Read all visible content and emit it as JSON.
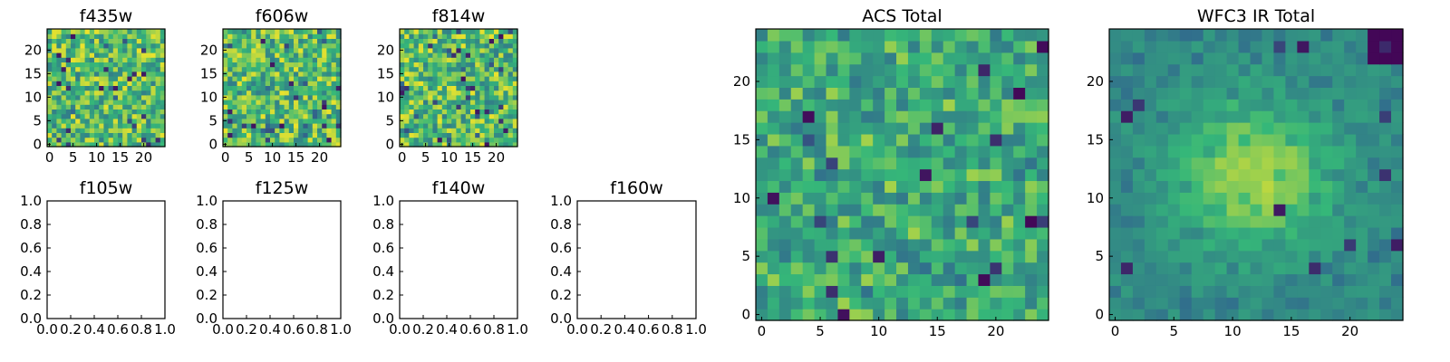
{
  "colormap": [
    "#440154",
    "#31688e",
    "#35b779",
    "#fde725"
  ],
  "chart_data": [
    {
      "type": "heatmap",
      "title": "f435w",
      "x_ticks": [
        "0",
        "5",
        "10",
        "15",
        "20"
      ],
      "y_ticks": [
        "0",
        "5",
        "10",
        "15",
        "20"
      ],
      "shape": [
        25,
        25
      ],
      "value_range": [
        0,
        1
      ]
    },
    {
      "type": "heatmap",
      "title": "f606w",
      "x_ticks": [
        "0",
        "5",
        "10",
        "15",
        "20"
      ],
      "y_ticks": [
        "0",
        "5",
        "10",
        "15",
        "20"
      ],
      "shape": [
        25,
        25
      ],
      "value_range": [
        0,
        1
      ]
    },
    {
      "type": "heatmap",
      "title": "f814w",
      "x_ticks": [
        "0",
        "5",
        "10",
        "15",
        "20"
      ],
      "y_ticks": [
        "0",
        "5",
        "10",
        "15",
        "20"
      ],
      "shape": [
        25,
        25
      ],
      "value_range": [
        0,
        1
      ]
    },
    {
      "type": "empty",
      "title": "f105w",
      "x_ticks": [
        "0.0",
        "0.2",
        "0.4",
        "0.6",
        "0.8",
        "1.0"
      ],
      "y_ticks": [
        "0.0",
        "0.2",
        "0.4",
        "0.6",
        "0.8",
        "1.0"
      ],
      "xlim": [
        0,
        1
      ],
      "ylim": [
        0,
        1
      ]
    },
    {
      "type": "empty",
      "title": "f125w",
      "x_ticks": [
        "0.0",
        "0.2",
        "0.4",
        "0.6",
        "0.8",
        "1.0"
      ],
      "y_ticks": [
        "0.0",
        "0.2",
        "0.4",
        "0.6",
        "0.8",
        "1.0"
      ],
      "xlim": [
        0,
        1
      ],
      "ylim": [
        0,
        1
      ]
    },
    {
      "type": "empty",
      "title": "f140w",
      "x_ticks": [
        "0.0",
        "0.2",
        "0.4",
        "0.6",
        "0.8",
        "1.0"
      ],
      "y_ticks": [
        "0.0",
        "0.2",
        "0.4",
        "0.6",
        "0.8",
        "1.0"
      ],
      "xlim": [
        0,
        1
      ],
      "ylim": [
        0,
        1
      ]
    },
    {
      "type": "empty",
      "title": "f160w",
      "x_ticks": [
        "0.0",
        "0.2",
        "0.4",
        "0.6",
        "0.8",
        "1.0"
      ],
      "y_ticks": [
        "0.0",
        "0.2",
        "0.4",
        "0.6",
        "0.8",
        "1.0"
      ],
      "xlim": [
        0,
        1
      ],
      "ylim": [
        0,
        1
      ]
    },
    {
      "type": "heatmap",
      "title": "ACS Total",
      "x_ticks": [
        "0",
        "5",
        "10",
        "15",
        "20"
      ],
      "y_ticks": [
        "0",
        "5",
        "10",
        "15",
        "20"
      ],
      "shape": [
        25,
        25
      ],
      "value_range": [
        0,
        1
      ]
    },
    {
      "type": "heatmap",
      "title": "WFC3 IR Total",
      "x_ticks": [
        "0",
        "5",
        "10",
        "15",
        "20"
      ],
      "y_ticks": [
        "0",
        "5",
        "10",
        "15",
        "20"
      ],
      "shape": [
        25,
        25
      ],
      "value_range": [
        0,
        1
      ],
      "bright_center": [
        12,
        12
      ]
    }
  ]
}
